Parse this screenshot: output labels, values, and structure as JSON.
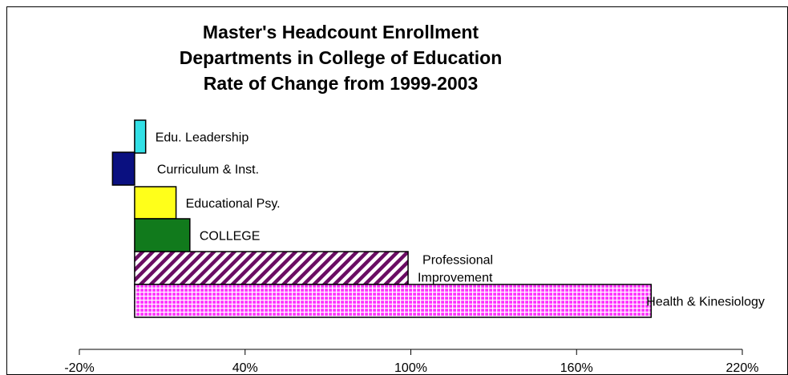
{
  "chart_data": {
    "type": "bar",
    "orientation": "horizontal",
    "title": [
      "Master's Headcount Enrollment",
      "Departments in College of Education",
      "Rate of Change from 1999-2003"
    ],
    "xlabel": "",
    "ylabel": "",
    "xlim": [
      -20,
      220
    ],
    "x_ticks": [
      -20,
      40,
      100,
      160,
      220
    ],
    "x_tick_labels": [
      "-20%",
      "40%",
      "100%",
      "160%",
      "220%"
    ],
    "grid": false,
    "legend": "none",
    "categories": [
      {
        "label": "Edu. Leadership",
        "value": 4,
        "fill": "#33e0e6",
        "pattern": "solid"
      },
      {
        "label": "Curriculum & Inst.",
        "value": -8,
        "fill": "#0a1080",
        "pattern": "solid"
      },
      {
        "label": "Educational Psy.",
        "value": 15,
        "fill": "#ffff1a",
        "pattern": "solid"
      },
      {
        "label": "COLLEGE",
        "value": 20,
        "fill": "#117a1c",
        "pattern": "solid"
      },
      {
        "label": "Professional Improvement",
        "label_lines": [
          "Professional",
          "Improvement"
        ],
        "value": 99,
        "fill": "#6a0d63",
        "pattern": "diagonal-stripes"
      },
      {
        "label": "Health & Kinesiology",
        "value": 187,
        "fill": "#ff33ff",
        "pattern": "grid"
      }
    ]
  }
}
